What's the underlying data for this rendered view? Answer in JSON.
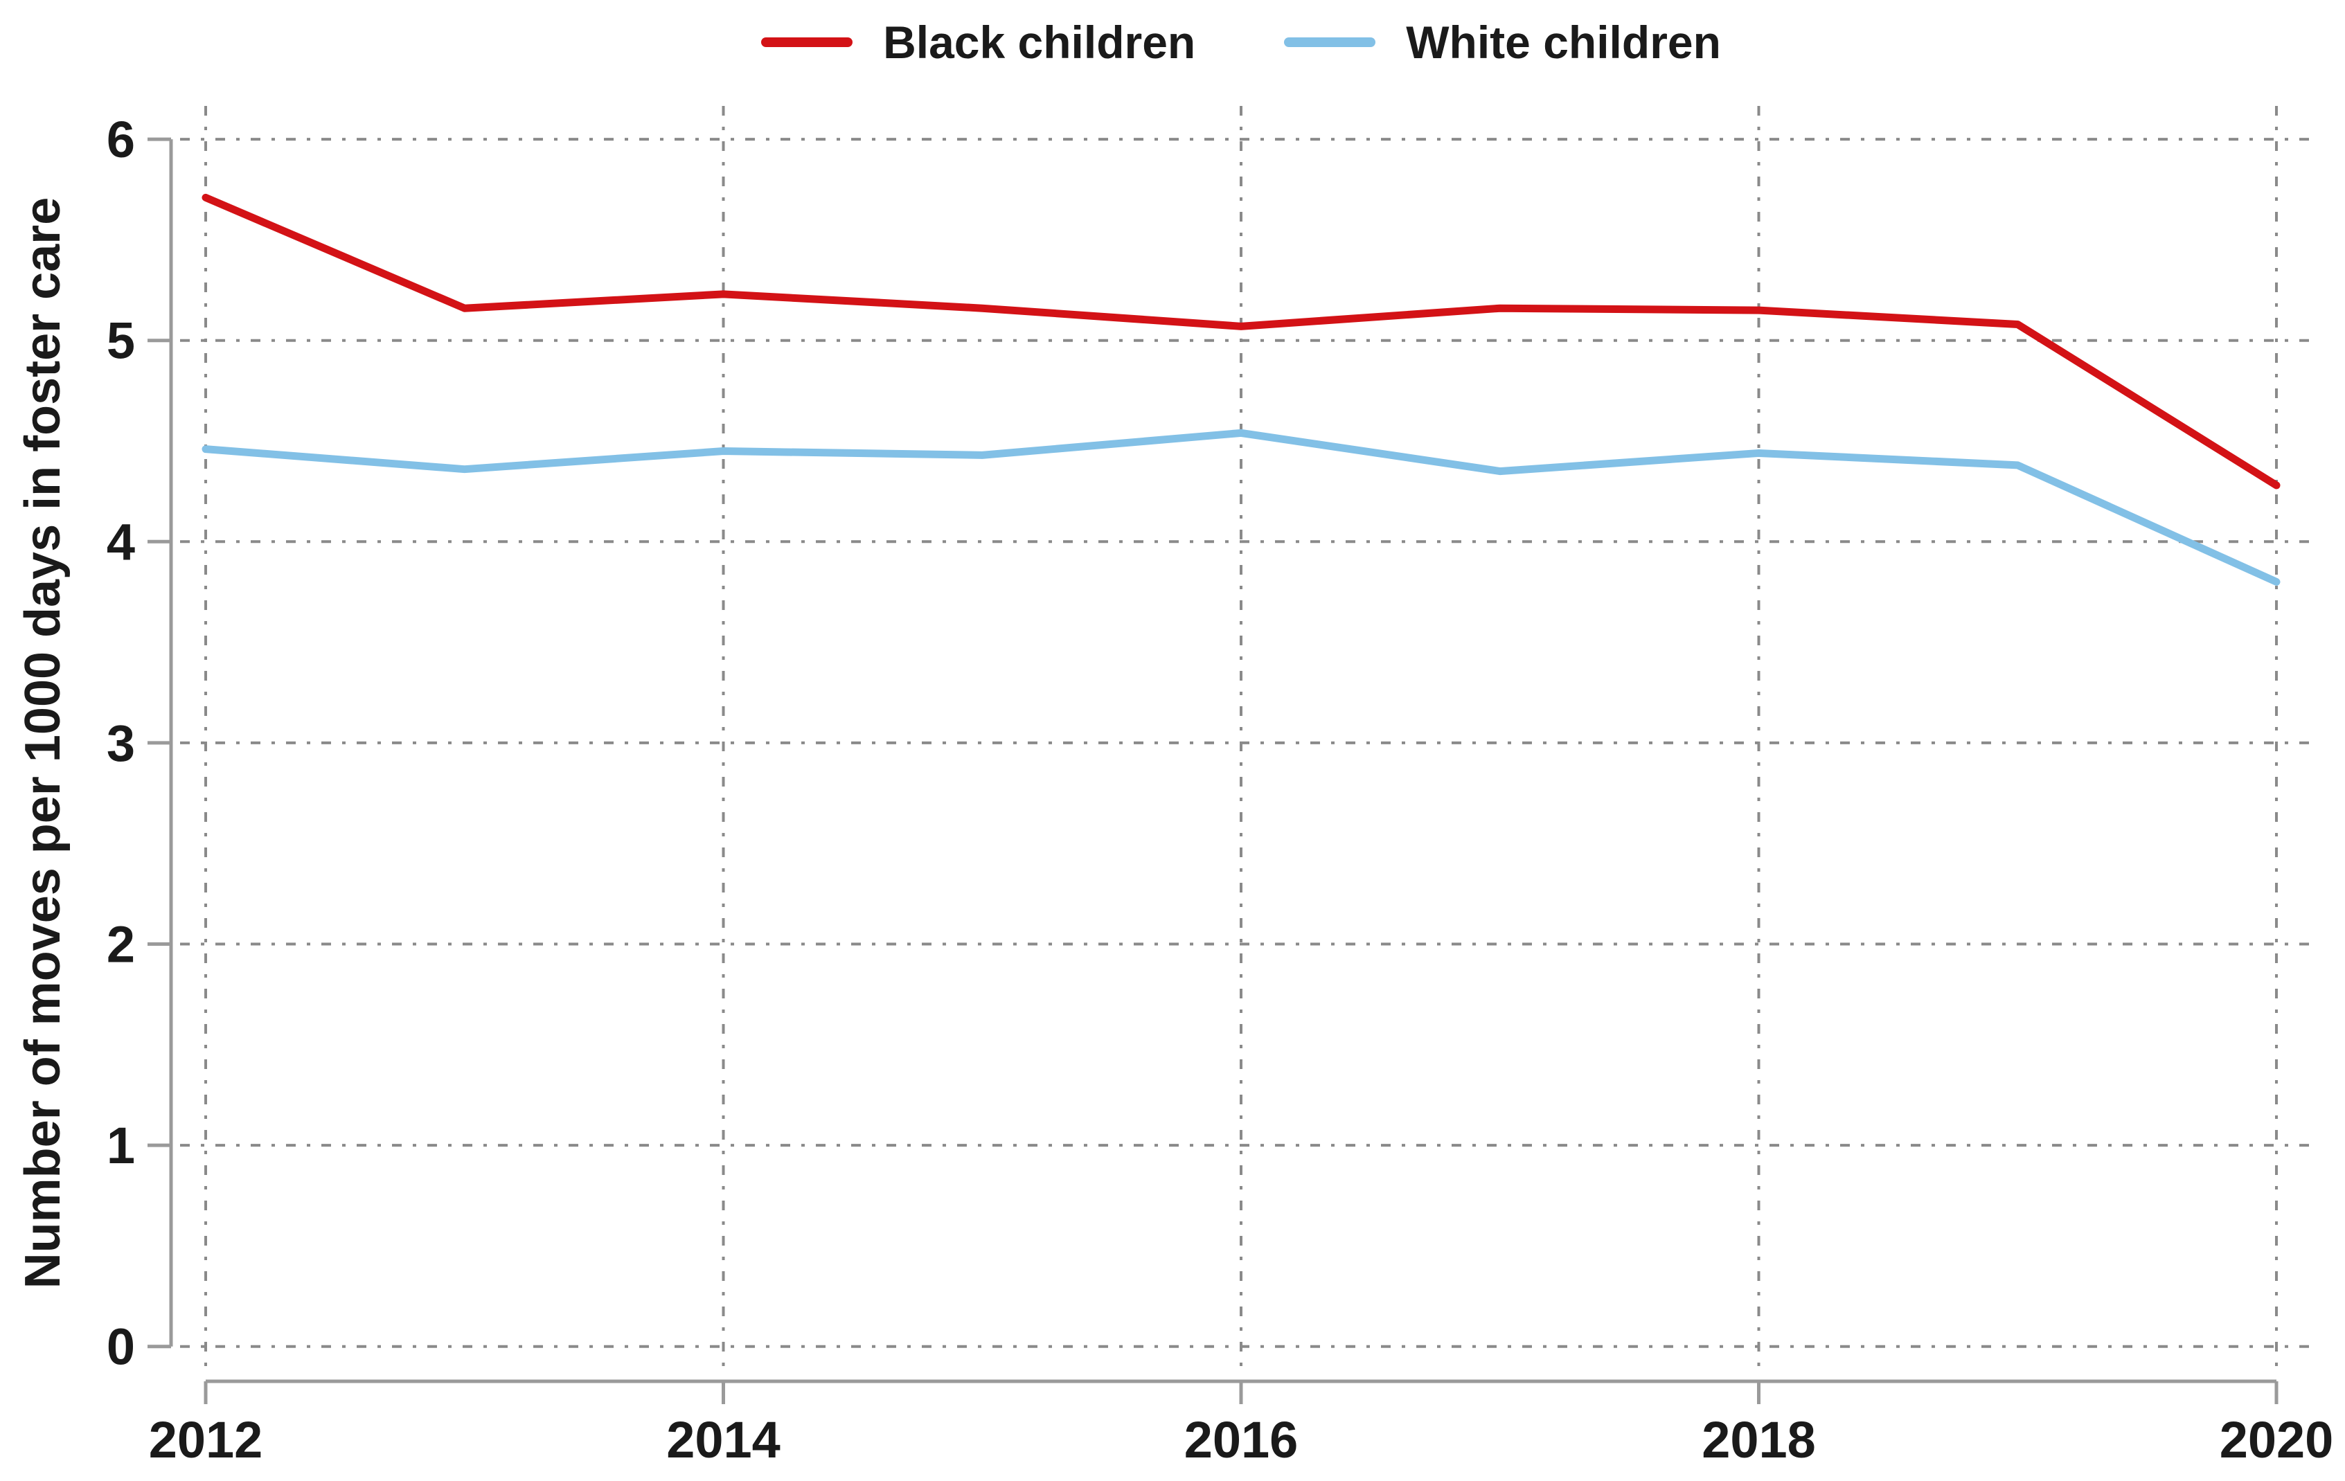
{
  "chart_data": {
    "type": "line",
    "title": "",
    "x": [
      2012,
      2013,
      2014,
      2015,
      2016,
      2017,
      2018,
      2019,
      2020
    ],
    "series": [
      {
        "name": "Black children",
        "color": "#d31216",
        "values": [
          5.71,
          5.16,
          5.23,
          5.16,
          5.07,
          5.16,
          5.15,
          5.08,
          4.28
        ]
      },
      {
        "name": "White children",
        "color": "#82c0e6",
        "values": [
          4.46,
          4.36,
          4.45,
          4.43,
          4.54,
          4.35,
          4.44,
          4.38,
          3.8
        ]
      }
    ],
    "xlabel": "",
    "ylabel": "Number of moves per 1000 days in foster care",
    "ylim": [
      0,
      6
    ],
    "yticks": [
      0,
      1,
      2,
      3,
      4,
      5,
      6
    ],
    "xticks": [
      2012,
      2014,
      2016,
      2018,
      2020
    ],
    "grid": true,
    "grid_style": "dash-dot",
    "legend_position": "top-center"
  },
  "colors": {
    "text": "#1a1a1a",
    "axis": "#9a9a9a",
    "grid": "#8a8a8a",
    "background": "#ffffff"
  }
}
